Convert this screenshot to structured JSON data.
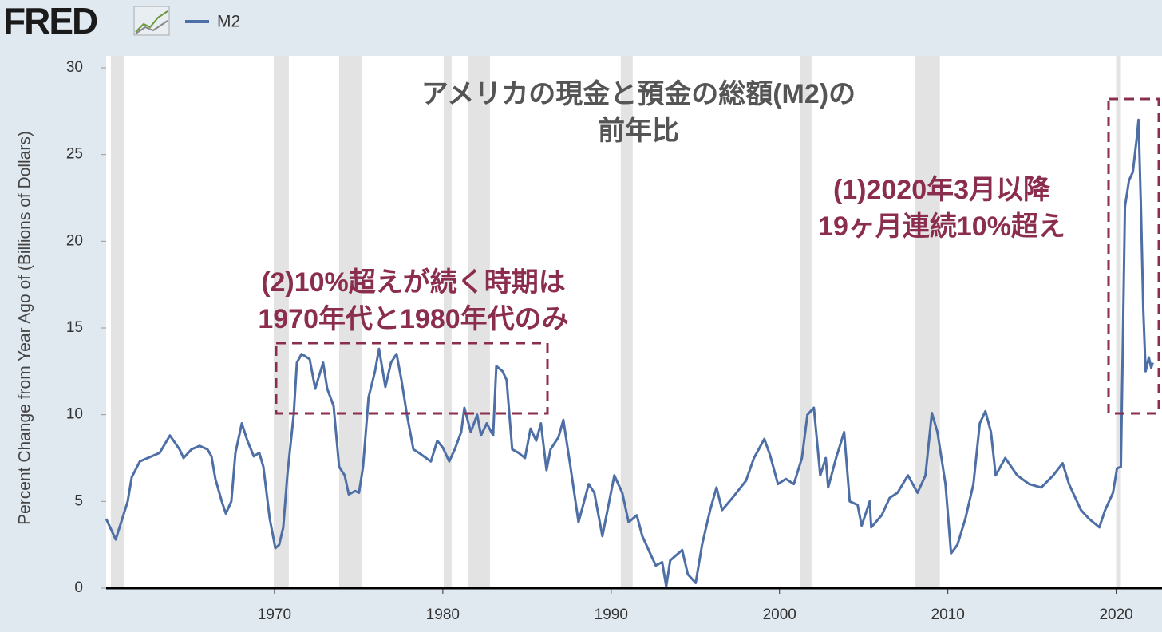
{
  "logo": "FRED",
  "chart_data": {
    "type": "line",
    "title": [
      "アメリカの現金と預金の総額(M2)の",
      "前年比"
    ],
    "annotations": [
      [
        "(1)2020年3月以降",
        "19ヶ月連続10%超え"
      ],
      [
        "(2)10%超えが続く時期は",
        "1970年代と1980年代のみ"
      ]
    ],
    "y_label": "Percent Change from Year Ago of (Billions of Dollars)",
    "xlim": [
      1960,
      2022.2
    ],
    "xticks": [
      1970,
      1980,
      1990,
      2000,
      2010,
      2020
    ],
    "ylim": [
      0,
      30
    ],
    "yticks": [
      0,
      5,
      10,
      15,
      20,
      25,
      30
    ],
    "recessions": [
      [
        1960.28,
        1961.04
      ],
      [
        1969.95,
        1970.85
      ],
      [
        1973.84,
        1975.17
      ],
      [
        1980.05,
        1980.52
      ],
      [
        1981.52,
        1982.8
      ],
      [
        1990.57,
        1991.28
      ],
      [
        2001.2,
        2001.9
      ],
      [
        2008.06,
        2009.53
      ],
      [
        2020.0,
        2020.28
      ]
    ],
    "x": [
      1960.0,
      1960.57,
      1961.28,
      1961.52,
      1962.0,
      1963.18,
      1963.79,
      1964.36,
      1964.6,
      1965.07,
      1965.55,
      1966.02,
      1966.26,
      1966.49,
      1966.87,
      1967.11,
      1967.44,
      1967.68,
      1968.06,
      1968.39,
      1968.77,
      1969.1,
      1969.34,
      1969.72,
      1970.05,
      1970.28,
      1970.52,
      1970.76,
      1971.14,
      1971.33,
      1971.61,
      1972.09,
      1972.42,
      1972.89,
      1973.13,
      1973.51,
      1973.84,
      1974.17,
      1974.41,
      1974.79,
      1975.02,
      1975.26,
      1975.59,
      1975.97,
      1976.21,
      1976.59,
      1976.92,
      1977.25,
      1977.54,
      1977.87,
      1978.25,
      1978.58,
      1979.29,
      1979.67,
      1980.0,
      1980.38,
      1980.71,
      1981.09,
      1981.28,
      1981.66,
      1982.04,
      1982.27,
      1982.61,
      1982.99,
      1983.18,
      1983.55,
      1983.79,
      1984.12,
      1984.5,
      1984.88,
      1985.21,
      1985.55,
      1985.83,
      1986.16,
      1986.4,
      1986.87,
      1987.16,
      1987.58,
      1988.06,
      1988.67,
      1989.0,
      1989.48,
      1990.19,
      1990.66,
      1991.04,
      1991.52,
      1991.85,
      1992.32,
      1992.65,
      1993.03,
      1993.27,
      1993.51,
      1994.22,
      1994.55,
      1995.02,
      1995.4,
      1995.88,
      1996.26,
      1996.59,
      1997.2,
      1998.01,
      1998.48,
      1999.1,
      1999.43,
      1999.91,
      2000.38,
      2000.85,
      2001.33,
      2001.66,
      2002.04,
      2002.42,
      2002.75,
      2002.89,
      2003.36,
      2003.84,
      2004.17,
      2004.64,
      2004.88,
      2005.36,
      2005.45,
      2006.07,
      2006.54,
      2007.01,
      2007.63,
      2008.2,
      2008.67,
      2009.05,
      2009.38,
      2009.86,
      2010.19,
      2010.57,
      2011.04,
      2011.52,
      2011.9,
      2012.23,
      2012.56,
      2012.84,
      2013.41,
      2014.12,
      2014.83,
      2015.55,
      2016.26,
      2016.82,
      2017.2,
      2017.91,
      2018.39,
      2019.0,
      2019.34,
      2019.81,
      2020.05,
      2020.28,
      2020.52,
      2020.76,
      2020.99,
      2021.23,
      2021.33,
      2021.47,
      2021.61,
      2021.75,
      2021.94,
      2022.08,
      2022.17
    ],
    "series": [
      {
        "name": "M2",
        "color": "#4e6fa5",
        "values": [
          4.0,
          2.8,
          5.0,
          6.4,
          7.3,
          7.8,
          8.8,
          8.0,
          7.5,
          8.0,
          8.2,
          8.0,
          7.6,
          6.3,
          5.0,
          4.3,
          5.0,
          7.8,
          9.5,
          8.5,
          7.6,
          7.8,
          7.0,
          4.0,
          2.3,
          2.5,
          3.5,
          6.5,
          10.0,
          13.0,
          13.5,
          13.2,
          11.5,
          13.0,
          11.5,
          10.5,
          7.0,
          6.5,
          5.4,
          5.6,
          5.5,
          7.0,
          11.0,
          12.5,
          13.8,
          11.6,
          13.0,
          13.5,
          12.0,
          10.0,
          8.0,
          7.8,
          7.3,
          8.5,
          8.1,
          7.3,
          8.0,
          9.0,
          10.4,
          9.0,
          10.0,
          8.8,
          9.5,
          8.8,
          12.8,
          12.5,
          12.0,
          8.0,
          7.8,
          7.5,
          9.2,
          8.5,
          9.5,
          6.8,
          8.0,
          8.7,
          9.7,
          7.0,
          3.8,
          6.0,
          5.5,
          3.0,
          6.5,
          5.5,
          3.8,
          4.2,
          3.0,
          2.0,
          1.3,
          1.5,
          0.1,
          1.6,
          2.2,
          0.8,
          0.3,
          2.5,
          4.5,
          5.8,
          4.5,
          5.2,
          6.2,
          7.5,
          8.6,
          7.7,
          6.0,
          6.3,
          6.0,
          7.5,
          10.0,
          10.4,
          6.5,
          7.5,
          5.8,
          7.5,
          9.0,
          5.0,
          4.8,
          3.6,
          5.0,
          3.5,
          4.2,
          5.2,
          5.5,
          6.5,
          5.5,
          6.5,
          10.1,
          9.0,
          6.0,
          2.0,
          2.5,
          4.0,
          6.0,
          9.5,
          10.2,
          9.0,
          6.5,
          7.5,
          6.5,
          6.0,
          5.8,
          6.5,
          7.2,
          6.0,
          4.5,
          4.0,
          3.5,
          4.5,
          5.5,
          6.9,
          7.0,
          22.0,
          23.5,
          24.0,
          26.0,
          27.0,
          22.0,
          16.0,
          12.5,
          13.3,
          12.7,
          13.0
        ]
      }
    ]
  }
}
